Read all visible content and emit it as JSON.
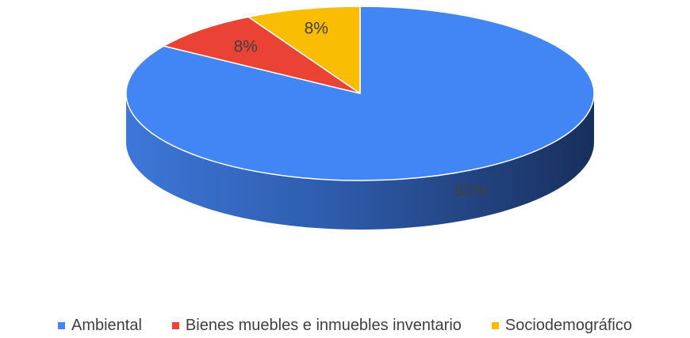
{
  "chart_data": {
    "type": "pie",
    "style": "3d",
    "categories": [
      "Ambiental",
      "Bienes muebles e inmuebles inventario",
      "Sociodemográfico"
    ],
    "values": [
      85,
      8,
      8
    ],
    "labels": [
      "85%",
      "8%",
      "8%"
    ],
    "colors": [
      "#4285F4",
      "#EA4335",
      "#FBBC04"
    ],
    "side_colors": [
      "#1C3A6E",
      "#A32A21",
      "#B08300"
    ],
    "start_angle": "12 o'clock",
    "direction": "clockwise",
    "legend_position": "bottom"
  }
}
